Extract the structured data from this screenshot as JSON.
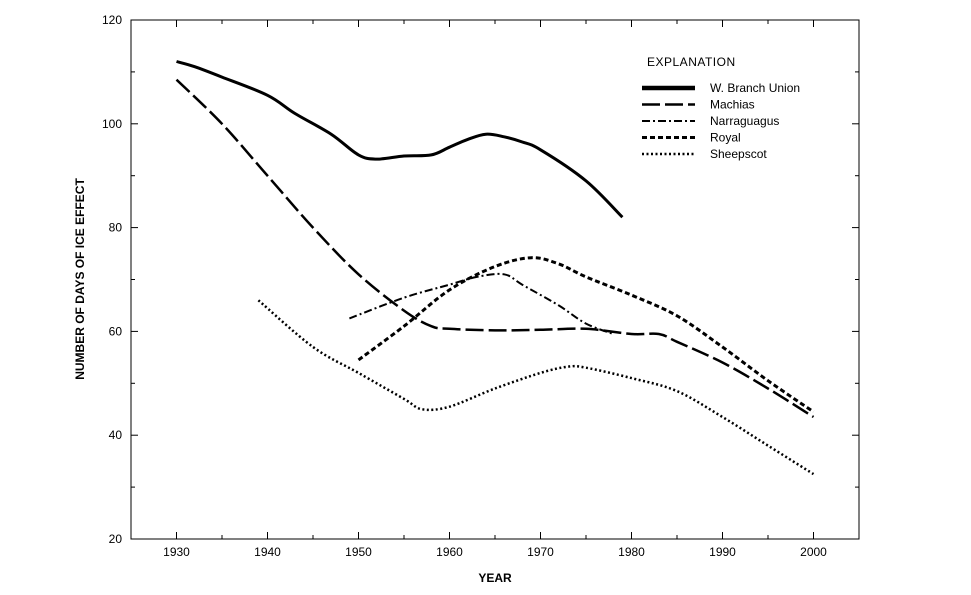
{
  "chart_data": {
    "type": "line",
    "xlabel": "YEAR",
    "ylabel": "NUMBER OF DAYS OF ICE EFFECT",
    "xlim": [
      1925,
      2005
    ],
    "ylim": [
      20,
      120
    ],
    "xticks": [
      1930,
      1940,
      1950,
      1960,
      1970,
      1980,
      1990,
      2000
    ],
    "yticks": [
      20,
      40,
      60,
      80,
      100,
      120
    ],
    "legend_title": "EXPLANATION",
    "legend_position": "top-right",
    "grid": false,
    "series": [
      {
        "name": "W. Branch Union",
        "style": "solid-thick",
        "x": [
          1930,
          1932,
          1935,
          1940,
          1943,
          1947,
          1950,
          1952,
          1955,
          1958,
          1960,
          1962,
          1964,
          1966,
          1968,
          1970,
          1975,
          1979
        ],
        "y": [
          112,
          111,
          109,
          105.5,
          102,
          98,
          94,
          93.2,
          93.8,
          94,
          95.5,
          97,
          98,
          97.5,
          96.5,
          95,
          89,
          82
        ]
      },
      {
        "name": "Machias",
        "style": "long-dash",
        "x": [
          1930,
          1935,
          1940,
          1945,
          1950,
          1955,
          1958,
          1960,
          1965,
          1970,
          1975,
          1980,
          1983,
          1985,
          1990,
          1995,
          2000
        ],
        "y": [
          108.5,
          100,
          90,
          80,
          71,
          64,
          61,
          60.5,
          60.2,
          60.3,
          60.5,
          59.5,
          59.5,
          58,
          54,
          49,
          43.5
        ]
      },
      {
        "name": "Narraguagus",
        "style": "dash-dot",
        "x": [
          1949,
          1955,
          1960,
          1963,
          1966,
          1968,
          1972,
          1975,
          1978
        ],
        "y": [
          62.5,
          66.5,
          69,
          70.5,
          71,
          69,
          65,
          61.5,
          59.5
        ]
      },
      {
        "name": "Royal",
        "style": "short-dash",
        "x": [
          1950,
          1955,
          1960,
          1965,
          1969,
          1972,
          1975,
          1980,
          1985,
          1990,
          1995,
          2000
        ],
        "y": [
          54.5,
          61,
          68,
          72.5,
          74.2,
          73,
          70.5,
          67,
          63,
          57,
          50.5,
          44.5
        ]
      },
      {
        "name": "Sheepscot",
        "style": "dotted",
        "x": [
          1939,
          1945,
          1950,
          1955,
          1957,
          1960,
          1965,
          1970,
          1973,
          1975,
          1980,
          1985,
          1990,
          1995,
          2000
        ],
        "y": [
          66,
          57,
          52,
          47,
          45,
          45.5,
          49,
          52,
          53.2,
          53,
          51,
          48.5,
          43.5,
          38,
          32.5
        ]
      }
    ]
  }
}
